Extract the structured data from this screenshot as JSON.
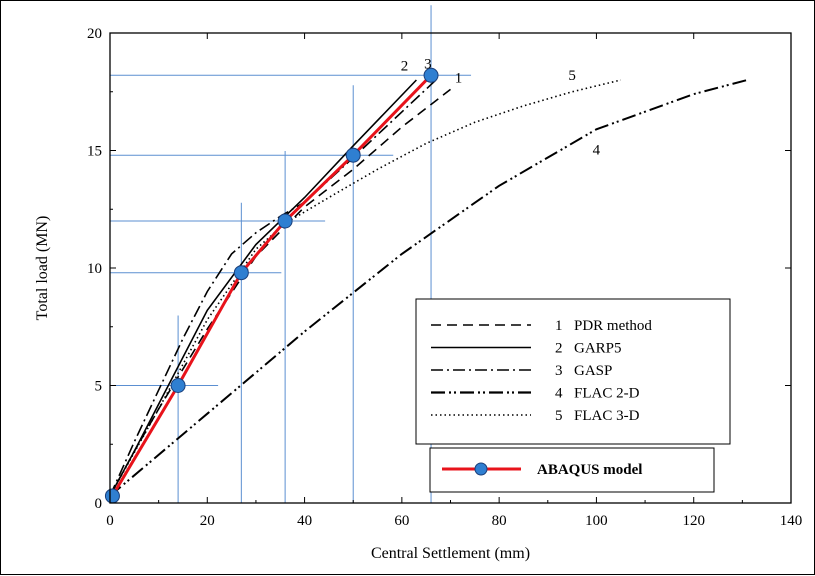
{
  "chart_data": {
    "type": "line",
    "title": "",
    "xlabel": "Central Settlement (mm)",
    "ylabel": "Total load (MN)",
    "xlim": [
      0,
      140
    ],
    "ylim": [
      0,
      20
    ],
    "xticks": [
      "0",
      "20",
      "40",
      "60",
      "80",
      "100",
      "120",
      "140"
    ],
    "yticks": [
      "0",
      "5",
      "10",
      "15",
      "20"
    ],
    "series": [
      {
        "name": "PDR method",
        "number": "1",
        "curve_label": "1",
        "style": "dashed",
        "color": "#000000",
        "x": [
          0,
          5,
          10,
          20,
          30,
          40,
          50,
          60,
          70
        ],
        "y": [
          0.3,
          2.2,
          4.0,
          7.4,
          10.5,
          12.6,
          14.2,
          16.0,
          17.6
        ]
      },
      {
        "name": "GARP5",
        "number": "2",
        "curve_label": "2",
        "style": "solid",
        "color": "#000000",
        "x": [
          0,
          5,
          10,
          20,
          30,
          40,
          50,
          63
        ],
        "y": [
          0.3,
          2.2,
          4.2,
          8.2,
          11.0,
          13.0,
          15.2,
          18.0
        ]
      },
      {
        "name": "GASP",
        "number": "3",
        "curve_label": "3",
        "style": "dashdot",
        "color": "#000000",
        "x": [
          0,
          5,
          10,
          15,
          20,
          25,
          30,
          35,
          40,
          50,
          67
        ],
        "y": [
          0.3,
          2.6,
          4.8,
          7.0,
          9.0,
          10.6,
          11.5,
          12.2,
          12.8,
          14.7,
          18.0
        ]
      },
      {
        "name": "FLAC 2-D",
        "number": "4",
        "curve_label": "4",
        "style": "dashdotdot",
        "color": "#000000",
        "x": [
          0,
          20,
          40,
          60,
          80,
          100,
          120,
          131
        ],
        "y": [
          0.3,
          3.8,
          7.3,
          10.6,
          13.5,
          15.9,
          17.4,
          18.0
        ]
      },
      {
        "name": "FLAC 3-D",
        "number": "5",
        "curve_label": "5",
        "style": "dotted",
        "color": "#000000",
        "x": [
          0,
          10,
          20,
          30,
          36,
          45,
          55,
          65,
          75,
          85,
          95,
          105
        ],
        "y": [
          0.3,
          4.0,
          7.8,
          10.8,
          11.9,
          13.0,
          14.2,
          15.3,
          16.2,
          16.9,
          17.5,
          18.0
        ]
      },
      {
        "name": "ABAQUS model",
        "style": "solid-markers",
        "color": "#e8131b",
        "marker_color": "#2f7fd1",
        "x": [
          0.5,
          14,
          27,
          36,
          50,
          66
        ],
        "y": [
          0.3,
          5.0,
          9.8,
          12.0,
          14.8,
          18.2
        ]
      }
    ],
    "reference_lines": {
      "color": "#5b8fd1",
      "points": [
        {
          "x": 14,
          "y": 5.0
        },
        {
          "x": 27,
          "y": 9.8
        },
        {
          "x": 36,
          "y": 12.0
        },
        {
          "x": 50,
          "y": 14.8
        },
        {
          "x": 66,
          "y": 18.2
        }
      ]
    },
    "legend": {
      "placement": "bottom-right",
      "entries": [
        {
          "number": "1",
          "label": "PDR method",
          "style": "dashed"
        },
        {
          "number": "2",
          "label": "GARP5",
          "style": "solid"
        },
        {
          "number": "3",
          "label": "GASP",
          "style": "dashdot"
        },
        {
          "number": "4",
          "label": "FLAC 2-D",
          "style": "dashdotdot"
        },
        {
          "number": "5",
          "label": "FLAC 3-D",
          "style": "dotted"
        }
      ],
      "abaqus_label": "ABAQUS model"
    },
    "grid": false
  }
}
